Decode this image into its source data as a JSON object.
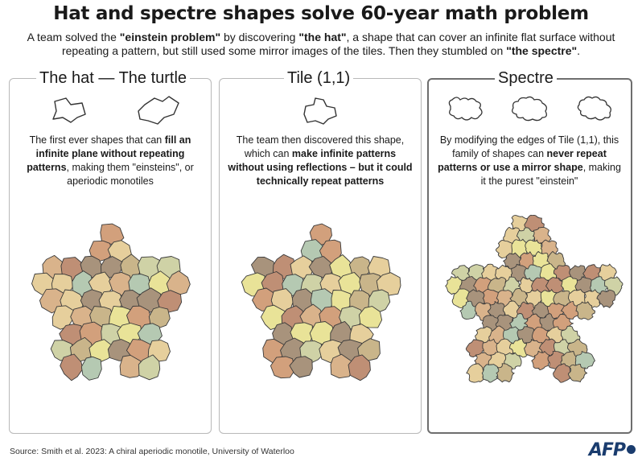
{
  "title": "Hat and spectre shapes solve 60-year math problem",
  "subtitle": {
    "p1": "A  team solved the ",
    "b1": "\"einstein problem\"",
    "p2": " by discovering ",
    "b2": "\"the hat\"",
    "p3": ", a shape that can cover an infinite flat surface without repeating a pattern, but still used some mirror images of the tiles. Then they stumbled on ",
    "b3": "\"the spectre\"",
    "p4": "."
  },
  "panels": [
    {
      "title": "The hat — The turtle",
      "desc": {
        "p1": "The first ever shapes that can ",
        "b1": "fill an infinite plane without repeating patterns",
        "p2": ", making them \"einsteins\", or aperiodic monotiles"
      }
    },
    {
      "title": "Tile (1,1)",
      "desc": {
        "p1": "The team then discovered this shape, which can ",
        "b1": "make infinite patterns without using reflections – but it could technically repeat patterns",
        "p2": ""
      }
    },
    {
      "title": "Spectre",
      "desc": {
        "p1": "By modifying the edges of Tile (1,1), this family of shapes can ",
        "b1": "never repeat patterns or use a mirror shape",
        "p2": ", making it the purest \"einstein\""
      }
    }
  ],
  "source": "Source: Smith et al. 2023: A chiral aperiodic monotile, University of Waterloo",
  "logo": "AFP",
  "colors": {
    "tile_palette": [
      "#d2a07c",
      "#e6cf9c",
      "#c9b58a",
      "#a8937c",
      "#e9e398",
      "#bf8f75",
      "#cfd2a6",
      "#b5c9b2",
      "#d9b38b"
    ],
    "border": "#b8b8b8",
    "logo": "#1a3c6e"
  }
}
